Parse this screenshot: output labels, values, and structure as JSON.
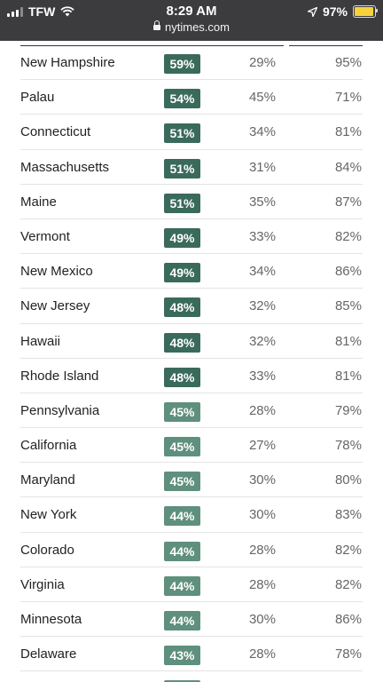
{
  "status_bar": {
    "carrier": "TFW",
    "time": "8:29 AM",
    "url": "nytimes.com",
    "battery_percent": "97%",
    "battery_level": 0.97,
    "signal_bars": 3,
    "icons": [
      "signal-icon",
      "wifi-icon",
      "lock-icon",
      "location-arrow-icon",
      "battery-icon"
    ]
  },
  "colors": {
    "status_bar_bg": "#3c3c3e",
    "badge_dark": "#3a6a5b",
    "badge_light": "#5f8f7d",
    "battery": "#f7d23b"
  },
  "table": {
    "rows": [
      {
        "state": "New Hampshire",
        "badge": "59%",
        "mid": "29%",
        "right": "95%",
        "shade": "dark"
      },
      {
        "state": "Palau",
        "badge": "54%",
        "mid": "45%",
        "right": "71%",
        "shade": "dark"
      },
      {
        "state": "Connecticut",
        "badge": "51%",
        "mid": "34%",
        "right": "81%",
        "shade": "dark"
      },
      {
        "state": "Massachusetts",
        "badge": "51%",
        "mid": "31%",
        "right": "84%",
        "shade": "dark"
      },
      {
        "state": "Maine",
        "badge": "51%",
        "mid": "35%",
        "right": "87%",
        "shade": "dark"
      },
      {
        "state": "Vermont",
        "badge": "49%",
        "mid": "33%",
        "right": "82%",
        "shade": "dark"
      },
      {
        "state": "New Mexico",
        "badge": "49%",
        "mid": "34%",
        "right": "86%",
        "shade": "dark"
      },
      {
        "state": "New Jersey",
        "badge": "48%",
        "mid": "32%",
        "right": "85%",
        "shade": "dark"
      },
      {
        "state": "Hawaii",
        "badge": "48%",
        "mid": "32%",
        "right": "81%",
        "shade": "dark"
      },
      {
        "state": "Rhode Island",
        "badge": "48%",
        "mid": "33%",
        "right": "81%",
        "shade": "dark"
      },
      {
        "state": "Pennsylvania",
        "badge": "45%",
        "mid": "28%",
        "right": "79%",
        "shade": "light"
      },
      {
        "state": "California",
        "badge": "45%",
        "mid": "27%",
        "right": "78%",
        "shade": "light"
      },
      {
        "state": "Maryland",
        "badge": "45%",
        "mid": "30%",
        "right": "80%",
        "shade": "light"
      },
      {
        "state": "New York",
        "badge": "44%",
        "mid": "30%",
        "right": "83%",
        "shade": "light"
      },
      {
        "state": "Colorado",
        "badge": "44%",
        "mid": "28%",
        "right": "82%",
        "shade": "light"
      },
      {
        "state": "Virginia",
        "badge": "44%",
        "mid": "28%",
        "right": "82%",
        "shade": "light"
      },
      {
        "state": "Minnesota",
        "badge": "44%",
        "mid": "30%",
        "right": "86%",
        "shade": "light"
      },
      {
        "state": "Delaware",
        "badge": "43%",
        "mid": "28%",
        "right": "78%",
        "shade": "light"
      }
    ]
  }
}
